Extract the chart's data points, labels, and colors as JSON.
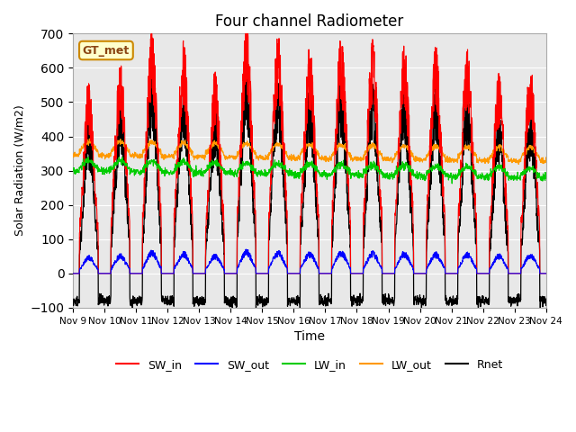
{
  "title": "Four channel Radiometer",
  "xlabel": "Time",
  "ylabel": "Solar Radiation (W/m2)",
  "annotation": "GT_met",
  "x_tick_labels": [
    "Nov 9",
    "Nov 10",
    "Nov 11",
    "Nov 12",
    "Nov 13",
    "Nov 14",
    "Nov 15",
    "Nov 16",
    "Nov 17",
    "Nov 18",
    "Nov 19",
    "Nov 20",
    "Nov 21",
    "Nov 22",
    "Nov 23",
    "Nov 24"
  ],
  "ylim": [
    -100,
    700
  ],
  "yticks": [
    -100,
    0,
    100,
    200,
    300,
    400,
    500,
    600,
    700
  ],
  "n_days": 15,
  "background_color": "#e8e8e8",
  "colors": {
    "SW_in": "#ff0000",
    "SW_out": "#0000ff",
    "LW_in": "#00cc00",
    "LW_out": "#ff9900",
    "Rnet": "#000000"
  },
  "legend_entries": [
    "SW_in",
    "SW_out",
    "LW_in",
    "LW_out",
    "Rnet"
  ]
}
